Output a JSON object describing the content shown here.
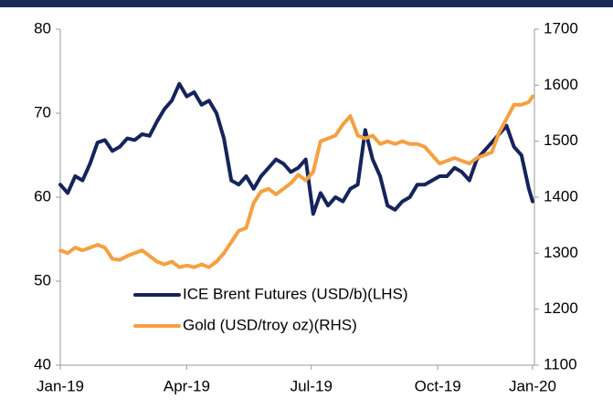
{
  "chart_data": {
    "type": "line",
    "x": [
      0,
      4,
      8,
      12,
      16,
      20,
      24,
      28,
      32,
      36,
      40,
      44,
      48,
      52,
      56,
      60,
      64,
      68,
      72,
      76,
      80,
      84,
      88,
      92,
      96,
      100,
      104,
      108,
      112,
      116,
      120,
      124,
      128,
      132,
      136,
      140,
      144,
      148,
      152,
      156,
      160,
      164,
      168,
      172,
      176,
      180,
      184,
      188,
      192,
      196,
      200,
      204,
      208,
      212,
      216,
      220,
      224,
      228,
      232,
      236,
      240,
      244,
      248,
      252,
      254
    ],
    "series": [
      {
        "name": "ICE Brent Futures (USD/b)(LHS)",
        "color": "#15245c",
        "axis": "y",
        "values": [
          61.5,
          60.5,
          62.5,
          62,
          64,
          66.5,
          66.8,
          65.5,
          66,
          67,
          66.8,
          67.5,
          67.3,
          69,
          70.5,
          71.5,
          73.5,
          72,
          72.5,
          71,
          71.5,
          70,
          67,
          62,
          61.5,
          62.5,
          61,
          62.5,
          63.5,
          64.5,
          64,
          63,
          63.5,
          64.5,
          58,
          60.5,
          59,
          60,
          59.5,
          61,
          61.5,
          68,
          64.5,
          62.5,
          59,
          58.5,
          59.5,
          60,
          61.5,
          61.5,
          62,
          62.5,
          62.5,
          63.5,
          63,
          62,
          64.5,
          65.5,
          66.5,
          67.5,
          68.5,
          66,
          65,
          61,
          59.5
        ]
      },
      {
        "name": "Gold (USD/troy oz)(RHS)",
        "color": "#f6a040",
        "axis": "y2",
        "values": [
          1305,
          1300,
          1310,
          1305,
          1310,
          1315,
          1310,
          1290,
          1288,
          1295,
          1300,
          1305,
          1295,
          1285,
          1280,
          1285,
          1275,
          1278,
          1275,
          1280,
          1275,
          1285,
          1300,
          1320,
          1340,
          1345,
          1390,
          1410,
          1415,
          1405,
          1415,
          1425,
          1440,
          1430,
          1445,
          1500,
          1505,
          1510,
          1530,
          1545,
          1510,
          1505,
          1510,
          1495,
          1500,
          1495,
          1500,
          1495,
          1495,
          1490,
          1475,
          1460,
          1465,
          1470,
          1465,
          1460,
          1470,
          1475,
          1480,
          1515,
          1540,
          1565,
          1565,
          1570,
          1580
        ]
      }
    ],
    "xlim": [
      0,
      255
    ],
    "xticks": [
      {
        "value": 0,
        "label": "Jan-19"
      },
      {
        "value": 68,
        "label": "Apr-19"
      },
      {
        "value": 135,
        "label": "Jul-19"
      },
      {
        "value": 203,
        "label": "Oct-19"
      },
      {
        "value": 254,
        "label": "Jan-20"
      }
    ],
    "ylim": [
      40,
      80
    ],
    "yticks": [
      40,
      50,
      60,
      70,
      80
    ],
    "y2lim": [
      1100,
      1700
    ],
    "y2ticks": [
      1100,
      1200,
      1300,
      1400,
      1500,
      1600,
      1700
    ],
    "legend": "lower center"
  }
}
